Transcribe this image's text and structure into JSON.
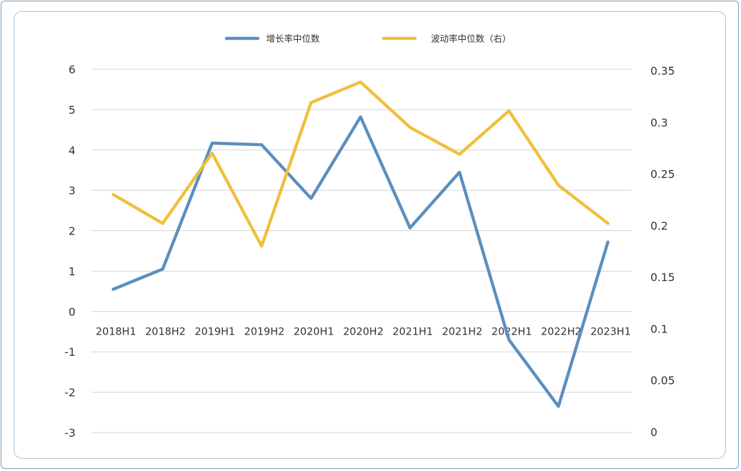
{
  "chart_data": {
    "type": "line",
    "categories": [
      "2018H1",
      "2018H2",
      "2019H1",
      "2019H2",
      "2020H1",
      "2020H2",
      "2021H1",
      "2021H2",
      "2022H1",
      "2022H2",
      "2023H1"
    ],
    "series": [
      {
        "name": "增长率中位数",
        "axis": "left",
        "color": "#5b8fbd",
        "values": [
          0.55,
          1.05,
          4.17,
          4.13,
          2.8,
          4.82,
          2.07,
          3.45,
          -0.7,
          -2.35,
          1.72
        ]
      },
      {
        "name": "波动率中位数（右）",
        "axis": "right",
        "color": "#f0bf3a",
        "values": [
          0.23,
          0.202,
          0.27,
          0.18,
          0.319,
          0.339,
          0.295,
          0.269,
          0.311,
          0.239,
          0.202
        ]
      }
    ],
    "left_axis": {
      "ylim": [
        -3,
        6
      ],
      "ticks": [
        6,
        5,
        4,
        3,
        2,
        1,
        0,
        -1,
        -2,
        -3
      ],
      "tick_labels": [
        "6",
        "5",
        "4",
        "3",
        "2",
        "1",
        "0",
        "-1",
        "-2",
        "-3"
      ]
    },
    "right_axis": {
      "ylim": [
        0,
        0.35
      ],
      "ticks": [
        0.35,
        0.3,
        0.25,
        0.2,
        0.15,
        0.1,
        0.05,
        0
      ],
      "tick_labels": [
        "0.35",
        "0.3",
        "0.25",
        "0.2",
        "0.15",
        "0.1",
        "0.05",
        "0"
      ]
    },
    "grid": true,
    "legend_position": "top-center",
    "title": "",
    "xlabel": "",
    "ylabel": ""
  }
}
